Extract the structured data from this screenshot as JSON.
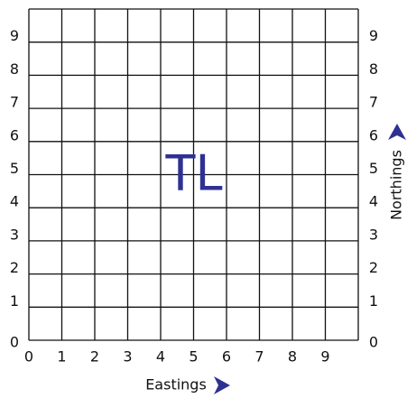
{
  "grid": {
    "square": "TL",
    "x_labels": [
      "0",
      "1",
      "2",
      "3",
      "4",
      "5",
      "6",
      "7",
      "8",
      "9"
    ],
    "y_labels_left": [
      "0",
      "1",
      "2",
      "3",
      "4",
      "5",
      "6",
      "7",
      "8",
      "9"
    ],
    "y_labels_right": [
      "0",
      "1",
      "2",
      "3",
      "4",
      "5",
      "6",
      "7",
      "8",
      "9"
    ],
    "x_axis_label": "Eastings",
    "y_axis_label": "Northings"
  }
}
